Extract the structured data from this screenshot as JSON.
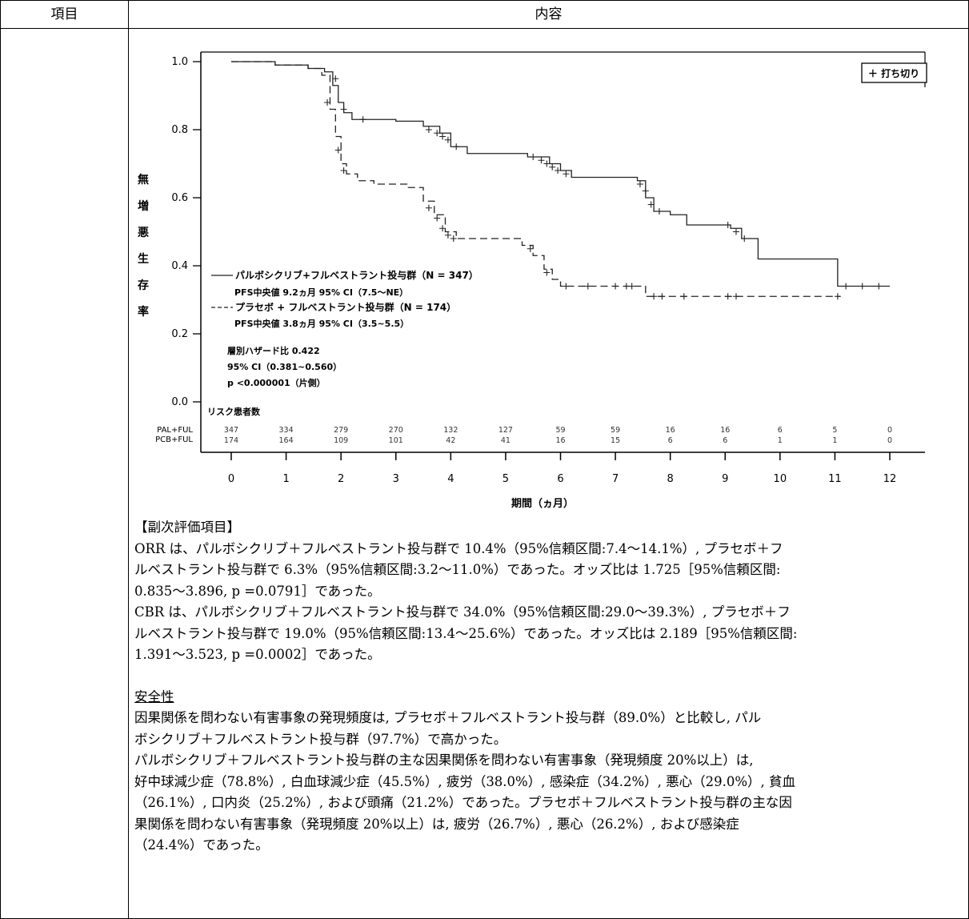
{
  "table": {
    "header": {
      "col1": "項目",
      "col2": "内容"
    }
  },
  "chart_data": {
    "type": "line",
    "subtype": "kaplan-meier",
    "ylabel": "無増悪生存率",
    "xlabel": "期間（ヵ月）",
    "xlim": [
      0,
      12
    ],
    "ylim": [
      0.0,
      1.0
    ],
    "x_ticks": [
      0,
      1,
      2,
      3,
      4,
      5,
      6,
      7,
      8,
      9,
      10,
      11,
      12
    ],
    "y_ticks": [
      "0.0",
      "0.2",
      "0.4",
      "0.6",
      "0.8",
      "1.0"
    ],
    "censor_legend": "＋ 打ち切り",
    "series": [
      {
        "name": "パルボシクリブ+フルベストラント投与群（N = 347）",
        "median": "PFS中央値 9.2ヵ月 95% CI（7.5〜NE）",
        "style": "solid",
        "steps": [
          [
            0,
            1.0
          ],
          [
            0.8,
            0.99
          ],
          [
            1.4,
            0.98
          ],
          [
            1.7,
            0.97
          ],
          [
            1.85,
            0.93
          ],
          [
            1.95,
            0.88
          ],
          [
            2.05,
            0.85
          ],
          [
            2.2,
            0.83
          ],
          [
            3.0,
            0.825
          ],
          [
            3.5,
            0.81
          ],
          [
            3.8,
            0.79
          ],
          [
            4.0,
            0.75
          ],
          [
            4.3,
            0.73
          ],
          [
            5.4,
            0.72
          ],
          [
            5.8,
            0.7
          ],
          [
            6.0,
            0.68
          ],
          [
            6.2,
            0.66
          ],
          [
            7.4,
            0.65
          ],
          [
            7.55,
            0.6
          ],
          [
            7.7,
            0.56
          ],
          [
            8.0,
            0.55
          ],
          [
            8.3,
            0.52
          ],
          [
            9.1,
            0.51
          ],
          [
            9.3,
            0.48
          ],
          [
            9.6,
            0.42
          ],
          [
            11.05,
            0.34
          ],
          [
            12.0,
            0.34
          ]
        ],
        "censors": [
          [
            1.9,
            0.95
          ],
          [
            2.05,
            0.86
          ],
          [
            2.4,
            0.83
          ],
          [
            3.6,
            0.8
          ],
          [
            3.75,
            0.79
          ],
          [
            3.85,
            0.78
          ],
          [
            3.95,
            0.77
          ],
          [
            4.1,
            0.75
          ],
          [
            5.5,
            0.72
          ],
          [
            5.65,
            0.71
          ],
          [
            5.75,
            0.7
          ],
          [
            5.85,
            0.69
          ],
          [
            5.95,
            0.68
          ],
          [
            6.1,
            0.67
          ],
          [
            7.45,
            0.64
          ],
          [
            7.55,
            0.62
          ],
          [
            7.65,
            0.58
          ],
          [
            7.8,
            0.56
          ],
          [
            9.05,
            0.52
          ],
          [
            9.2,
            0.5
          ],
          [
            9.35,
            0.48
          ],
          [
            11.2,
            0.34
          ],
          [
            11.5,
            0.34
          ],
          [
            11.8,
            0.34
          ]
        ]
      },
      {
        "name": "プラセボ + フルベストラント投与群（N = 174）",
        "median": "PFS中央値 3.8ヵ月 95% CI（3.5~5.5）",
        "style": "dashed",
        "steps": [
          [
            0,
            1.0
          ],
          [
            0.8,
            0.99
          ],
          [
            1.4,
            0.98
          ],
          [
            1.65,
            0.96
          ],
          [
            1.8,
            0.86
          ],
          [
            1.9,
            0.78
          ],
          [
            2.0,
            0.7
          ],
          [
            2.1,
            0.67
          ],
          [
            2.3,
            0.65
          ],
          [
            2.6,
            0.64
          ],
          [
            3.2,
            0.63
          ],
          [
            3.5,
            0.59
          ],
          [
            3.7,
            0.55
          ],
          [
            3.9,
            0.5
          ],
          [
            4.1,
            0.48
          ],
          [
            5.3,
            0.46
          ],
          [
            5.5,
            0.43
          ],
          [
            5.7,
            0.39
          ],
          [
            5.85,
            0.36
          ],
          [
            6.0,
            0.34
          ],
          [
            7.55,
            0.31
          ],
          [
            11.1,
            0.31
          ]
        ],
        "censors": [
          [
            1.75,
            0.88
          ],
          [
            1.95,
            0.74
          ],
          [
            2.05,
            0.68
          ],
          [
            3.6,
            0.57
          ],
          [
            3.75,
            0.54
          ],
          [
            3.85,
            0.51
          ],
          [
            3.95,
            0.49
          ],
          [
            4.05,
            0.48
          ],
          [
            5.45,
            0.45
          ],
          [
            5.75,
            0.38
          ],
          [
            6.1,
            0.34
          ],
          [
            6.5,
            0.34
          ],
          [
            7.0,
            0.34
          ],
          [
            7.2,
            0.34
          ],
          [
            7.3,
            0.34
          ],
          [
            7.7,
            0.31
          ],
          [
            7.85,
            0.31
          ],
          [
            8.25,
            0.31
          ],
          [
            9.05,
            0.31
          ],
          [
            9.2,
            0.31
          ],
          [
            11.05,
            0.31
          ]
        ]
      }
    ],
    "hazard_lines": [
      "層別ハザード比 0.422",
      "95% CI（0.381~0.560）",
      "p <0.000001（片側）"
    ],
    "risk_table": {
      "title": "リスク患者数",
      "rows": [
        {
          "label": "PAL+FUL",
          "values": [
            "347",
            "334",
            "279",
            "270",
            "132",
            "127",
            "59",
            "59",
            "16",
            "16",
            "6",
            "5",
            "0"
          ]
        },
        {
          "label": "PCB+FUL",
          "values": [
            "174",
            "164",
            "109",
            "101",
            "42",
            "41",
            "16",
            "15",
            "6",
            "6",
            "1",
            "1",
            "0"
          ]
        }
      ]
    }
  },
  "content": {
    "secondary_title": "【副次評価項目】",
    "orr_line1": "ORR は、パルボシクリブ＋フルベストラント投与群で 10.4%（95%信頼区間:7.4〜14.1%）, プラセボ＋フ",
    "orr_line2": "ルベストラント投与群で 6.3%（95%信頼区間:3.2〜11.0%）であった。オッズ比は 1.725［95%信頼区間:",
    "orr_line3": "0.835〜3.896, p =0.0791］であった。",
    "cbr_line1": "CBR は、パルボシクリブ＋フルベストラント投与群で 34.0%（95%信頼区間:29.0〜39.3%）, プラセボ＋フ",
    "cbr_line2": "ルベストラント投与群で 19.0%（95%信頼区間:13.4〜25.6%）であった。オッズ比は 2.189［95%信頼区間:",
    "cbr_line3": "1.391〜3.523, p =0.0002］であった。",
    "safety_title": "安全性",
    "safety_line1": "因果関係を問わない有害事象の発現頻度は, プラセボ＋フルベストラント投与群（89.0%）と比較し, パル",
    "safety_line2": "ボシクリブ＋フルベストラント投与群（97.7%）で高かった。",
    "safety_line3": "パルボシクリブ＋フルベストラント投与群の主な因果関係を問わない有害事象（発現頻度 20%以上）は,",
    "safety_line4": "好中球減少症（78.8%）, 白血球減少症（45.5%）, 疲労（38.0%）, 感染症（34.2%）, 悪心（29.0%）, 貧血",
    "safety_line5": "（26.1%）, 口内炎（25.2%）, および頭痛（21.2%）であった。プラセボ＋フルベストラント投与群の主な因",
    "safety_line6": "果関係を問わない有害事象（発現頻度 20%以上）は, 疲労（26.7%）, 悪心（26.2%）, および感染症",
    "safety_line7": "（24.4%）であった。"
  }
}
